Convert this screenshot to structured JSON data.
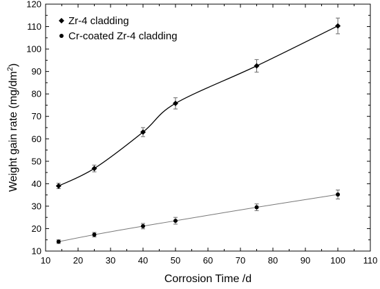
{
  "chart_data": {
    "type": "line",
    "xlabel": "Corrosion Time /d",
    "ylabel": "Weight gain rate (mg/dm",
    "ylabel_superscript": "2",
    "ylabel_close": ")",
    "xlim": [
      10,
      110
    ],
    "ylim": [
      10,
      120
    ],
    "xticks": [
      10,
      20,
      30,
      40,
      50,
      60,
      70,
      80,
      90,
      100,
      110
    ],
    "yticks": [
      10,
      20,
      30,
      40,
      50,
      60,
      70,
      80,
      90,
      100,
      110,
      120
    ],
    "legend_position": "top-left",
    "grid": false,
    "series": [
      {
        "name": "Zr-4 cladding",
        "marker": "diamond",
        "color": "#000000",
        "x": [
          14,
          25,
          40,
          50,
          75,
          100
        ],
        "y": [
          39,
          46.8,
          63,
          75.8,
          92.5,
          110.3
        ],
        "err": [
          1.2,
          1.5,
          2.0,
          2.5,
          2.8,
          3.5
        ]
      },
      {
        "name": "Cr-coated Zr-4 cladding",
        "marker": "circle",
        "color": "#555555",
        "x": [
          14,
          25,
          40,
          50,
          75,
          100
        ],
        "y": [
          14.2,
          17.3,
          21.1,
          23.5,
          29.5,
          35.2
        ],
        "err": [
          0.8,
          1.0,
          1.2,
          1.5,
          1.5,
          2.0
        ]
      }
    ]
  }
}
